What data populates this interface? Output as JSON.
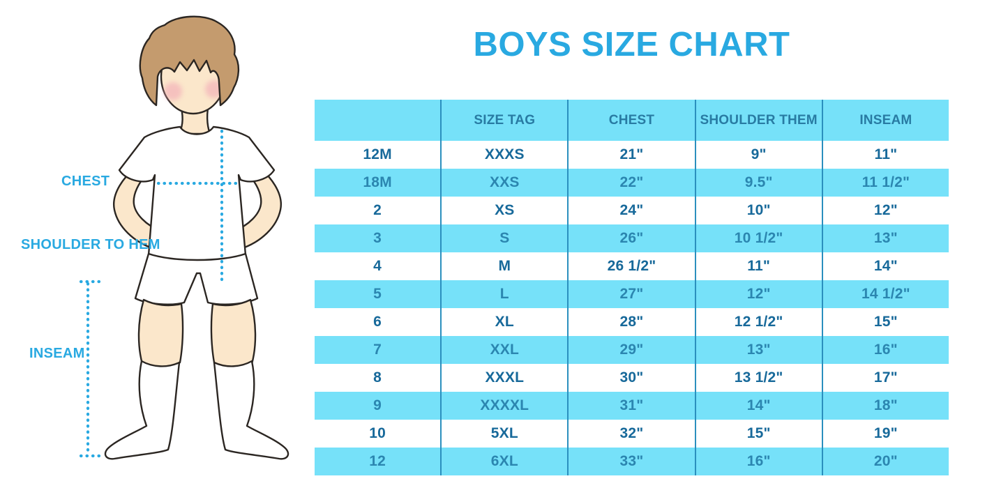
{
  "page": {
    "title": "BOYS SIZE CHART"
  },
  "figure": {
    "labels": {
      "chest": "CHEST",
      "shoulder_to_hem": "SHOULDER TO HEM",
      "inseam": "INSEAM"
    }
  },
  "colors": {
    "blue": "#29a9e1",
    "cyan": "#76e1f9",
    "divider": "#2b8fbe",
    "headertext": "#287ba3",
    "textwhite": "#17699a",
    "textcyan": "#2b86b0",
    "skin": "#fbe7cb",
    "hair": "#c49b6e",
    "cheek": "#f2a8b6",
    "outline": "#2b2622"
  },
  "chart_data": {
    "type": "table",
    "title": "BOYS SIZE CHART",
    "columns": [
      "",
      "SIZE TAG",
      "CHEST",
      "SHOULDER THEM",
      "INSEAM"
    ],
    "rows": [
      [
        "12M",
        "XXXS",
        "21\"",
        "9\"",
        "11\""
      ],
      [
        "18M",
        "XXS",
        "22\"",
        "9.5\"",
        "11 1/2\""
      ],
      [
        "2",
        "XS",
        "24\"",
        "10\"",
        "12\""
      ],
      [
        "3",
        "S",
        "26\"",
        "10 1/2\"",
        "13\""
      ],
      [
        "4",
        "M",
        "26 1/2\"",
        "11\"",
        "14\""
      ],
      [
        "5",
        "L",
        "27\"",
        "12\"",
        "14 1/2\""
      ],
      [
        "6",
        "XL",
        "28\"",
        "12 1/2\"",
        "15\""
      ],
      [
        "7",
        "XXL",
        "29\"",
        "13\"",
        "16\""
      ],
      [
        "8",
        "XXXL",
        "30\"",
        "13 1/2\"",
        "17\""
      ],
      [
        "9",
        "XXXXL",
        "31\"",
        "14\"",
        "18\""
      ],
      [
        "10",
        "5XL",
        "32\"",
        "15\"",
        "19\""
      ],
      [
        "12",
        "6XL",
        "33\"",
        "16\"",
        "20\""
      ]
    ]
  }
}
